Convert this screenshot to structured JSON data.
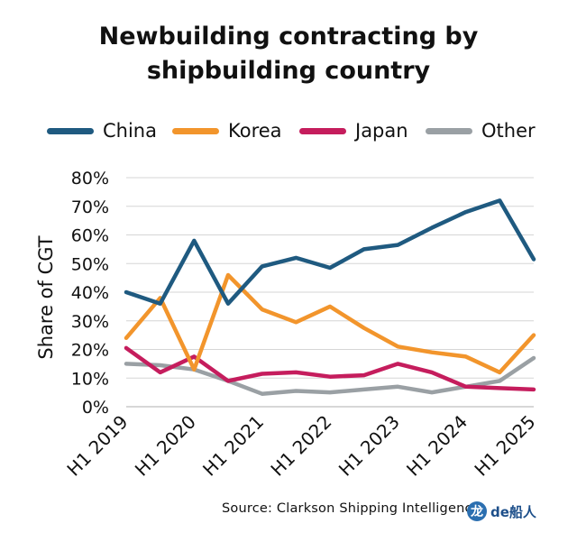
{
  "chart_data": {
    "type": "line",
    "title_line1": "Newbuilding contracting by",
    "title_line2": "shipbuilding country",
    "ylabel": "Share of CGT",
    "xlabel": "",
    "ylim": [
      0,
      80
    ],
    "yticks": [
      "0%",
      "10%",
      "20%",
      "30%",
      "40%",
      "50%",
      "60%",
      "70%",
      "80%"
    ],
    "grid": "horizontal",
    "legend_position": "top",
    "x": [
      "H1 2019",
      "H2 2019",
      "H1 2020",
      "H2 2020",
      "H1 2021",
      "H2 2021",
      "H1 2022",
      "H2 2022",
      "H1 2023",
      "H2 2023",
      "H1 2024",
      "H2 2024",
      "H1 2025"
    ],
    "xtick_labels": [
      "H1 2019",
      "H1 2020",
      "H1 2021",
      "H1 2022",
      "H1 2023",
      "H1 2024",
      "H1 2025"
    ],
    "series": [
      {
        "name": "China",
        "color": "#1f5a80",
        "values": [
          40,
          36,
          58,
          36,
          49,
          52,
          48.5,
          55,
          56.5,
          62.5,
          68,
          72,
          51.5
        ]
      },
      {
        "name": "Korea",
        "color": "#f2952c",
        "values": [
          24,
          38,
          13,
          46,
          34,
          29.5,
          35,
          27.5,
          21,
          19,
          17.5,
          12,
          25
        ]
      },
      {
        "name": "Japan",
        "color": "#c51d5d",
        "values": [
          20.5,
          12,
          17.5,
          9,
          11.5,
          12,
          10.5,
          11,
          15,
          12,
          7,
          6.5,
          6
        ]
      },
      {
        "name": "Other",
        "color": "#9aa0a4",
        "values": [
          15,
          14.5,
          13,
          9,
          4.5,
          5.5,
          5,
          6,
          7,
          5,
          7,
          9,
          17
        ]
      }
    ]
  },
  "source_text": "Source: Clarkson Shipping Intelligence",
  "watermark": {
    "badge": "龙",
    "text": "de船人"
  }
}
